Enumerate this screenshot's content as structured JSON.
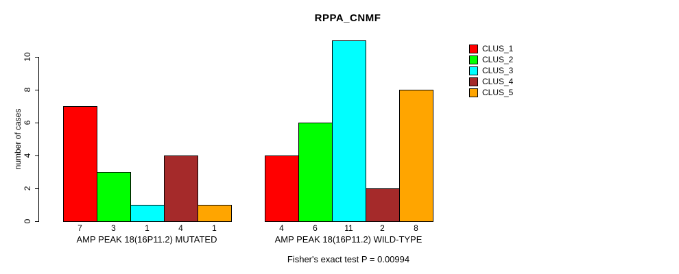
{
  "chart_data": {
    "type": "bar",
    "title": "RPPA_CNMF",
    "ylabel": "number of cases",
    "xlabel": "",
    "yticks": [
      0,
      2,
      4,
      6,
      8,
      10
    ],
    "ylim": [
      0,
      11
    ],
    "grid": false,
    "legend": {
      "position": "top-right",
      "entries": [
        {
          "label": "CLUS_1",
          "color": "#FF0000"
        },
        {
          "label": "CLUS_2",
          "color": "#00FF00"
        },
        {
          "label": "CLUS_3",
          "color": "#00FFFF"
        },
        {
          "label": "CLUS_4",
          "color": "#A52A2A"
        },
        {
          "label": "CLUS_5",
          "color": "#FFA500"
        }
      ]
    },
    "groups": [
      {
        "key": "mutated",
        "label": "AMP PEAK 18(16P11.2) MUTATED",
        "values": [
          7,
          3,
          1,
          4,
          1
        ]
      },
      {
        "key": "wildtype",
        "label": "AMP PEAK 18(16P11.2) WILD-TYPE",
        "values": [
          4,
          6,
          11,
          2,
          8
        ]
      }
    ],
    "annotation": "Fisher's exact test P = 0.00994",
    "colors": {
      "background": "#FFFFFF",
      "axis": "#000000",
      "text": "#000000"
    }
  }
}
